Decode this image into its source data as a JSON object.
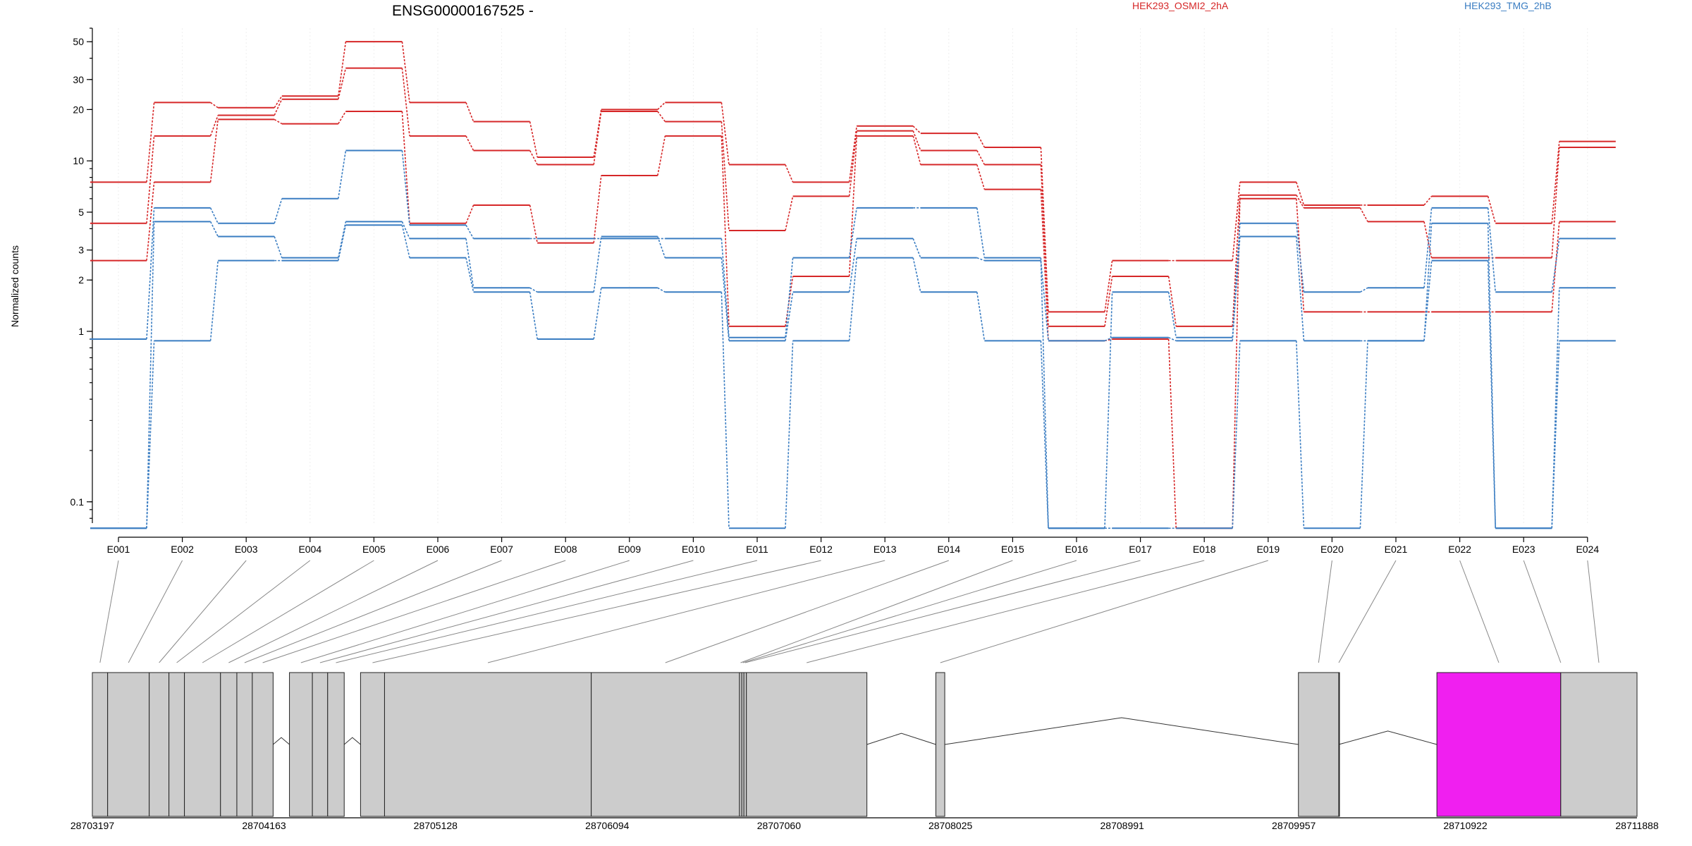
{
  "chart_data": {
    "type": "line",
    "title": "ENSG00000167525 -",
    "ylabel": "Normalized counts",
    "y_scale": "log",
    "ylim": [
      0.075,
      60
    ],
    "y_ticks": [
      0.1,
      1,
      2,
      3,
      5,
      10,
      20,
      30,
      50
    ],
    "y_tick_labels": [
      "0.1",
      "1",
      "2",
      "3",
      "5",
      "10",
      "20",
      "30",
      "50"
    ],
    "categories": [
      "E001",
      "E002",
      "E003",
      "E004",
      "E005",
      "E006",
      "E007",
      "E008",
      "E009",
      "E010",
      "E011",
      "E012",
      "E013",
      "E014",
      "E015",
      "E016",
      "E017",
      "E018",
      "E019",
      "E020",
      "E021",
      "E022",
      "E023",
      "E024"
    ],
    "groups": [
      {
        "name": "HEK293_OSMI2_2hA",
        "color": "#d62728"
      },
      {
        "name": "HEK293_TMG_2hB",
        "color": "#3a7dc2"
      }
    ],
    "series": [
      {
        "group": "HEK293_OSMI2_2hA",
        "values": [
          7.5,
          22,
          20.5,
          24,
          50,
          22,
          17,
          10.5,
          20,
          22,
          9.5,
          7.5,
          16,
          14.5,
          12,
          1.3,
          2.6,
          2.6,
          7.5,
          5.5,
          5.5,
          6.2,
          4.3,
          13
        ]
      },
      {
        "group": "HEK293_OSMI2_2hA",
        "values": [
          4.3,
          14,
          18.5,
          23,
          35,
          14,
          11.5,
          9.5,
          19.5,
          17,
          3.9,
          6.2,
          15,
          11.5,
          9.5,
          1.07,
          2.1,
          1.07,
          6.3,
          5.3,
          4.4,
          2.7,
          2.7,
          12
        ]
      },
      {
        "group": "HEK293_OSMI2_2hA",
        "values": [
          2.6,
          7.5,
          17.5,
          16.5,
          19.5,
          4.3,
          5.5,
          3.3,
          8.2,
          14,
          1.07,
          2.1,
          14,
          9.5,
          6.8,
          0.88,
          0.9,
          0.07,
          6.0,
          1.3,
          1.3,
          1.3,
          1.3,
          4.4
        ]
      },
      {
        "group": "HEK293_TMG_2hB",
        "values": [
          0.9,
          5.3,
          4.3,
          6.0,
          11.5,
          4.2,
          3.5,
          3.5,
          3.5,
          3.5,
          0.92,
          2.7,
          5.3,
          5.3,
          2.7,
          0.07,
          1.7,
          0.92,
          4.3,
          1.7,
          1.8,
          5.3,
          1.7,
          3.5
        ]
      },
      {
        "group": "HEK293_TMG_2hB",
        "values": [
          0.07,
          4.4,
          3.6,
          2.7,
          4.4,
          3.5,
          1.8,
          1.7,
          3.6,
          2.7,
          0.88,
          1.7,
          3.5,
          2.7,
          2.6,
          0.88,
          0.92,
          0.88,
          3.6,
          0.88,
          0.88,
          4.3,
          0.07,
          1.8
        ]
      },
      {
        "group": "HEK293_TMG_2hB",
        "values": [
          0.07,
          0.88,
          2.6,
          2.6,
          4.2,
          2.7,
          1.7,
          0.9,
          1.8,
          1.7,
          0.07,
          0.88,
          2.7,
          1.7,
          0.88,
          0.07,
          0.07,
          0.07,
          0.88,
          0.07,
          0.88,
          2.6,
          0.07,
          0.88
        ]
      }
    ],
    "gene_model": {
      "genomic_start": 28703197,
      "genomic_end": 28711888,
      "coordinate_labels": [
        "28703197",
        "28704163",
        "28705128",
        "28706094",
        "28707060",
        "28708025",
        "28708991",
        "28709957",
        "28710922",
        "28711888"
      ],
      "exons": [
        {
          "start": 28703197,
          "end": 28703283,
          "highlight": false
        },
        {
          "start": 28703283,
          "end": 28703517,
          "highlight": false
        },
        {
          "start": 28703517,
          "end": 28703628,
          "highlight": false
        },
        {
          "start": 28703628,
          "end": 28703715,
          "highlight": false
        },
        {
          "start": 28703715,
          "end": 28703918,
          "highlight": false
        },
        {
          "start": 28703918,
          "end": 28704010,
          "highlight": false
        },
        {
          "start": 28704010,
          "end": 28704097,
          "highlight": false
        },
        {
          "start": 28704097,
          "end": 28704214,
          "highlight": false
        },
        {
          "start": 28704306,
          "end": 28704435,
          "highlight": false
        },
        {
          "start": 28704435,
          "end": 28704521,
          "highlight": false
        },
        {
          "start": 28704521,
          "end": 28704614,
          "highlight": false
        },
        {
          "start": 28704706,
          "end": 28704841,
          "highlight": false
        },
        {
          "start": 28704841,
          "end": 28706004,
          "highlight": false
        },
        {
          "start": 28706004,
          "end": 28706838,
          "highlight": false
        },
        {
          "start": 28706838,
          "end": 28706851,
          "highlight": false
        },
        {
          "start": 28706851,
          "end": 28706863,
          "highlight": false
        },
        {
          "start": 28706863,
          "end": 28706877,
          "highlight": false
        },
        {
          "start": 28706877,
          "end": 28707555,
          "highlight": false
        },
        {
          "start": 28707943,
          "end": 28707993,
          "highlight": false
        },
        {
          "start": 28709983,
          "end": 28710210,
          "highlight": false
        },
        {
          "start": 28710210,
          "end": 28710210,
          "highlight": false
        },
        {
          "start": 28710762,
          "end": 28711459,
          "highlight": true
        },
        {
          "start": 28711459,
          "end": 28711459,
          "highlight": false
        },
        {
          "start": 28711459,
          "end": 28711888,
          "highlight": false
        }
      ],
      "highlight_color": "#f01ff0",
      "exon_color": "#cccccc"
    }
  }
}
